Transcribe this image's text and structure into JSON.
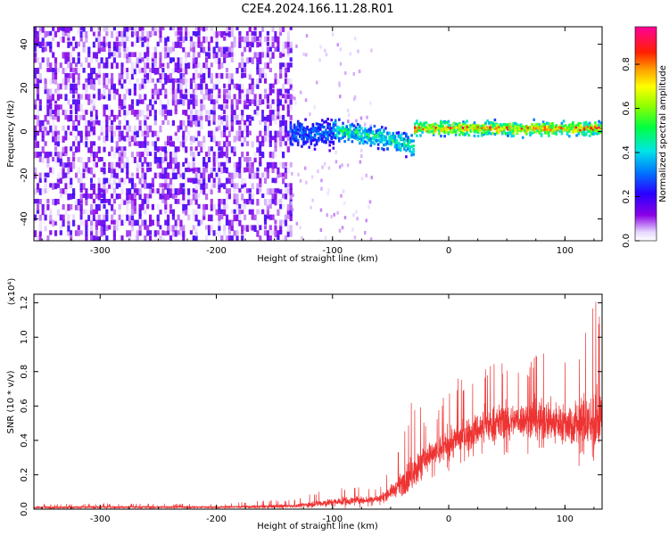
{
  "title": "C2E4.2024.166.11.28.R01",
  "chart_data": [
    {
      "type": "heatmap",
      "xlabel": "Height of straight line (km)",
      "ylabel": "Frequency (Hz)",
      "xlim": [
        -357,
        132
      ],
      "ylim": [
        -50,
        48
      ],
      "xticks": [
        -300,
        -200,
        -100,
        0,
        100
      ],
      "yticks": [
        -40,
        -20,
        0,
        20,
        40
      ],
      "grid": false,
      "colorbar": {
        "label": "Normalized spectral amplitude",
        "range": [
          0.0,
          0.97
        ],
        "ticks": [
          "0.0",
          "0.2",
          "0.4",
          "0.6",
          "0.8"
        ],
        "colormap": "rainbow (purple → blue → cyan → green → yellow → red → pink)"
      },
      "regions": [
        {
          "x": [
            -357,
            -137
          ],
          "frequency_spread": [
            -50,
            48
          ],
          "amplitude": [
            0.0,
            0.2
          ],
          "note": "broadband purple noise"
        },
        {
          "x": [
            -137,
            -100
          ],
          "frequency_spread": [
            -15,
            13
          ],
          "amplitude": [
            0.1,
            0.35
          ]
        },
        {
          "x": [
            -100,
            -30
          ],
          "frequency_center": [
            0,
            -7
          ],
          "frequency_spread": 10,
          "amplitude": [
            0.1,
            0.35
          ]
        },
        {
          "x": [
            -30,
            132
          ],
          "frequency_center": 1,
          "frequency_spread": 5,
          "amplitude_peak": 0.85,
          "note": "red/green core line"
        }
      ]
    },
    {
      "type": "line",
      "xlabel": "Height of straight line (km)",
      "ylabel": "SNR (10 * v/v)",
      "scale_label": "(x10⁴)",
      "xlim": [
        -357,
        132
      ],
      "ylim": [
        0.0,
        1.25
      ],
      "xticks": [
        -300,
        -200,
        -100,
        0,
        100
      ],
      "yticks": [
        "0.0",
        "0.2",
        "0.4",
        "0.6",
        "0.8",
        "1.0",
        "1.2"
      ],
      "color": "#ee3333",
      "grid": false,
      "envelope": {
        "x": [
          -357,
          -300,
          -200,
          -160,
          -130,
          -110,
          -80,
          -60,
          -45,
          -30,
          -20,
          -10,
          0,
          20,
          40,
          60,
          80,
          100,
          115,
          125,
          132
        ],
        "median": [
          0.01,
          0.012,
          0.012,
          0.015,
          0.02,
          0.035,
          0.05,
          0.06,
          0.12,
          0.22,
          0.3,
          0.33,
          0.38,
          0.45,
          0.5,
          0.52,
          0.52,
          0.5,
          0.5,
          0.5,
          0.52
        ],
        "max": [
          0.03,
          0.035,
          0.03,
          0.05,
          0.06,
          0.12,
          0.13,
          0.13,
          0.3,
          0.7,
          0.55,
          0.6,
          0.75,
          0.8,
          0.88,
          0.8,
          0.95,
          0.9,
          1.05,
          1.2,
          1.25
        ],
        "min": [
          0.0,
          0.0,
          0.0,
          0.0,
          0.0,
          0.0,
          0.0,
          0.02,
          0.05,
          0.1,
          0.14,
          0.18,
          0.22,
          0.28,
          0.32,
          0.3,
          0.28,
          0.3,
          0.2,
          0.02,
          0.25
        ]
      }
    }
  ]
}
